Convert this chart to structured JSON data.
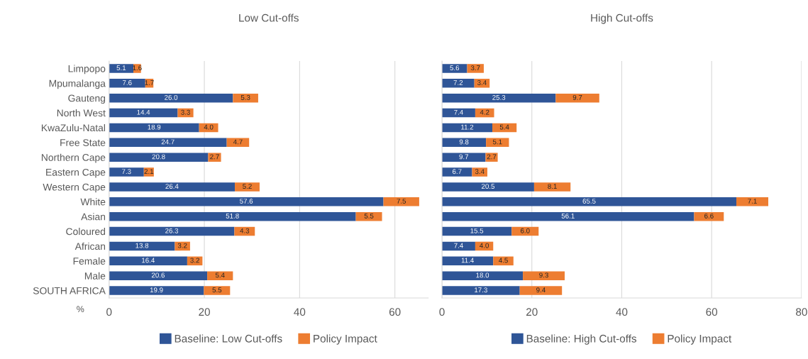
{
  "chart_data": [
    {
      "type": "bar",
      "title": "Low Cut-offs",
      "xlabel": "%",
      "orientation": "horizontal",
      "stacked": true,
      "grid": "x",
      "legend": "bottom",
      "xlim": [
        0,
        67
      ],
      "xticks": [
        0,
        20,
        40,
        60
      ],
      "categories": [
        "Limpopo",
        "Mpumalanga",
        "Gauteng",
        "North West",
        "KwaZulu-Natal",
        "Free State",
        "Northern Cape",
        "Eastern Cape",
        "Western Cape",
        "White",
        "Asian",
        "Coloured",
        "African",
        "Female",
        "Male",
        "SOUTH AFRICA"
      ],
      "series": [
        {
          "name": "Baseline: Low Cut-offs",
          "color": "#2f5597",
          "values": [
            5.1,
            7.6,
            26.0,
            14.4,
            18.9,
            24.7,
            20.8,
            7.3,
            26.4,
            57.6,
            51.8,
            26.3,
            13.8,
            16.4,
            20.6,
            19.9
          ],
          "value_labels": [
            "5.1",
            "7.6",
            "26.0",
            "14.4",
            "18.9",
            "24.7",
            "20.8",
            "7.3",
            "26.4",
            "57.6",
            "51.8",
            "26.3",
            "13.8",
            "16.4",
            "20.6",
            "19.9"
          ]
        },
        {
          "name": "Policy Impact",
          "color": "#ed7d31",
          "values": [
            1.6,
            1.7,
            5.3,
            3.3,
            4.0,
            4.7,
            2.7,
            2.1,
            5.2,
            7.5,
            5.5,
            4.3,
            3.2,
            3.2,
            5.4,
            5.5
          ],
          "value_labels": [
            "1.6",
            "1.7",
            "5.3",
            "3.3",
            "4.0",
            "4.7",
            "2.7",
            "2.1",
            "5.2",
            "7.5",
            "5.5",
            "4.3",
            "3.2",
            "3.2",
            "5.4",
            "5.5"
          ]
        }
      ]
    },
    {
      "type": "bar",
      "title": "High Cut-offs",
      "orientation": "horizontal",
      "stacked": true,
      "grid": "x",
      "legend": "bottom",
      "xlim": [
        0,
        80
      ],
      "xticks": [
        0,
        20,
        40,
        60,
        80
      ],
      "categories": [
        null,
        null,
        null,
        null,
        null,
        null,
        null,
        null,
        null,
        null,
        null,
        null,
        null,
        null,
        null,
        null
      ],
      "tick_labels": "x",
      "series": [
        {
          "name": "Baseline: High Cut-offs",
          "color": "#2f5597",
          "values": [
            5.6,
            7.2,
            25.3,
            7.4,
            11.2,
            9.8,
            9.7,
            6.7,
            20.5,
            65.5,
            56.1,
            15.5,
            7.4,
            11.4,
            18.0,
            17.3
          ],
          "value_labels": [
            "5.6",
            "7.2",
            "25.3",
            "7.4",
            "11.2",
            "9.8",
            "9.7",
            "6.7",
            "20.5",
            "65.5",
            "56.1",
            "15.5",
            "7.4",
            "11.4",
            "18.0",
            "17.3"
          ]
        },
        {
          "name": "Policy Impact",
          "color": "#ed7d31",
          "values": [
            3.7,
            3.4,
            9.7,
            4.2,
            5.4,
            5.1,
            2.7,
            3.4,
            8.1,
            7.1,
            6.6,
            6.0,
            4.0,
            4.5,
            9.3,
            9.4
          ],
          "value_labels": [
            "3.7",
            "3.4",
            "9.7",
            "4.2",
            "5.4",
            "5.1",
            "2.7",
            "3.4",
            "8.1",
            "7.1",
            "6.6",
            "6.0",
            "4.0",
            "4.5",
            "9.3",
            "9.4"
          ]
        }
      ]
    }
  ]
}
